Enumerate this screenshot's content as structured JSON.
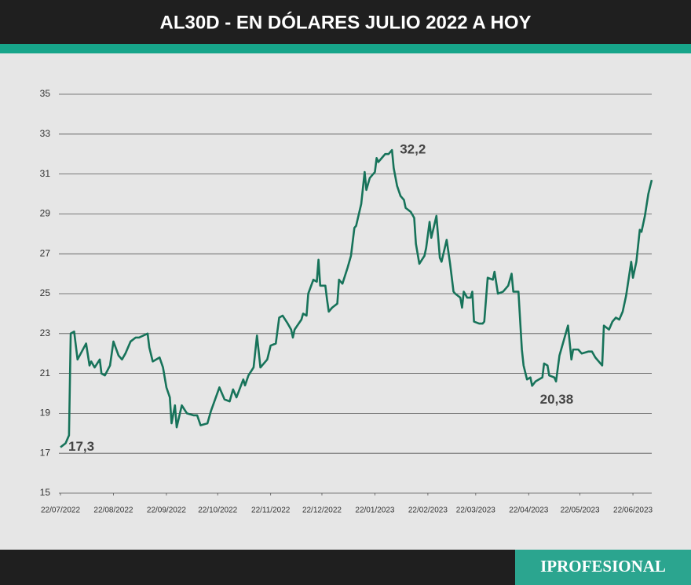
{
  "chart_data": {
    "type": "line",
    "title": "AL30D - EN DÓLARES JULIO 2022 A HOY",
    "brand": "IPROFESIONAL",
    "grid": true,
    "ylim": [
      15,
      35
    ],
    "yticks": [
      15,
      17,
      19,
      21,
      23,
      25,
      27,
      29,
      31,
      33,
      35
    ],
    "xlim": [
      "2022-07-22",
      "2023-07-03"
    ],
    "xticks": [
      {
        "value": "2022-07-22",
        "label": "22/07/2022"
      },
      {
        "value": "2022-08-22",
        "label": "22/08/2022"
      },
      {
        "value": "2022-09-22",
        "label": "22/09/2022"
      },
      {
        "value": "2022-10-22",
        "label": "22/10/2022"
      },
      {
        "value": "2022-11-22",
        "label": "22/11/2022"
      },
      {
        "value": "2022-12-22",
        "label": "22/12/2022"
      },
      {
        "value": "2023-01-22",
        "label": "22/01/2023"
      },
      {
        "value": "2023-02-22",
        "label": "22/02/2023"
      },
      {
        "value": "2023-03-22",
        "label": "22/03/2023"
      },
      {
        "value": "2023-04-22",
        "label": "22/04/2023"
      },
      {
        "value": "2023-05-22",
        "label": "22/05/2023"
      },
      {
        "value": "2023-06-22",
        "label": "22/06/2023"
      }
    ],
    "x": [
      "2022-07-22",
      "2022-07-25",
      "2022-07-27",
      "2022-07-28",
      "2022-07-30",
      "2022-08-01",
      "2022-08-06",
      "2022-08-08",
      "2022-08-09",
      "2022-08-11",
      "2022-08-14",
      "2022-08-15",
      "2022-08-17",
      "2022-08-20",
      "2022-08-22",
      "2022-08-25",
      "2022-08-27",
      "2022-08-29",
      "2022-09-01",
      "2022-09-04",
      "2022-09-06",
      "2022-09-11",
      "2022-09-12",
      "2022-09-14",
      "2022-09-18",
      "2022-09-20",
      "2022-09-22",
      "2022-09-24",
      "2022-09-25",
      "2022-09-27",
      "2022-09-28",
      "2022-10-01",
      "2022-10-04",
      "2022-10-08",
      "2022-10-10",
      "2022-10-12",
      "2022-10-16",
      "2022-10-18",
      "2022-10-23",
      "2022-10-26",
      "2022-10-29",
      "2022-10-31",
      "2022-11-02",
      "2022-11-06",
      "2022-11-07",
      "2022-11-09",
      "2022-11-12",
      "2022-11-14",
      "2022-11-16",
      "2022-11-20",
      "2022-11-22",
      "2022-11-25",
      "2022-11-27",
      "2022-11-29",
      "2022-12-02",
      "2022-12-04",
      "2022-12-05",
      "2022-12-06",
      "2022-12-10",
      "2022-12-11",
      "2022-12-13",
      "2022-12-14",
      "2022-12-17",
      "2022-12-19",
      "2022-12-20",
      "2022-12-21",
      "2022-12-24",
      "2022-12-25",
      "2022-12-26",
      "2022-12-28",
      "2022-12-31",
      "2023-01-01",
      "2023-01-03",
      "2023-01-06",
      "2023-01-08",
      "2023-01-10",
      "2023-01-11",
      "2023-01-14",
      "2023-01-16",
      "2023-01-17",
      "2023-01-19",
      "2023-01-22",
      "2023-01-23",
      "2023-01-24",
      "2023-01-27",
      "2023-01-28",
      "2023-01-30",
      "2023-02-01",
      "2023-02-02",
      "2023-02-04",
      "2023-02-06",
      "2023-02-08",
      "2023-02-09",
      "2023-02-12",
      "2023-02-14",
      "2023-02-15",
      "2023-02-17",
      "2023-02-20",
      "2023-02-21",
      "2023-02-23",
      "2023-02-24",
      "2023-02-27",
      "2023-03-01",
      "2023-03-02",
      "2023-03-05",
      "2023-03-07",
      "2023-03-09",
      "2023-03-10",
      "2023-03-13",
      "2023-03-14",
      "2023-03-15",
      "2023-03-17",
      "2023-03-19",
      "2023-03-20",
      "2023-03-21",
      "2023-03-24",
      "2023-03-26",
      "2023-03-27",
      "2023-03-29",
      "2023-04-01",
      "2023-04-02",
      "2023-04-04",
      "2023-04-07",
      "2023-04-10",
      "2023-04-12",
      "2023-04-13",
      "2023-04-16",
      "2023-04-18",
      "2023-04-19",
      "2023-04-21",
      "2023-04-23",
      "2023-04-24",
      "2023-04-26",
      "2023-04-30",
      "2023-05-01",
      "2023-05-03",
      "2023-05-04",
      "2023-05-07",
      "2023-05-08",
      "2023-05-10",
      "2023-05-12",
      "2023-05-15",
      "2023-05-17",
      "2023-05-18",
      "2023-05-21",
      "2023-05-23",
      "2023-05-27",
      "2023-05-29",
      "2023-05-31",
      "2023-06-03",
      "2023-06-04",
      "2023-06-05",
      "2023-06-08",
      "2023-06-10",
      "2023-06-12",
      "2023-06-14",
      "2023-06-16",
      "2023-06-18",
      "2023-06-21",
      "2023-06-22",
      "2023-06-24",
      "2023-06-26",
      "2023-06-27",
      "2023-06-29",
      "2023-07-01",
      "2023-07-03"
    ],
    "series": [
      {
        "color": "#17735a",
        "values": [
          17.3,
          17.5,
          17.9,
          23.0,
          23.1,
          21.7,
          22.5,
          21.4,
          21.6,
          21.3,
          21.7,
          21.0,
          20.9,
          21.4,
          22.6,
          21.9,
          21.7,
          22.0,
          22.6,
          22.8,
          22.8,
          23.0,
          22.3,
          21.6,
          21.8,
          21.3,
          20.3,
          19.8,
          18.5,
          19.4,
          18.3,
          19.4,
          19.0,
          18.9,
          18.9,
          18.4,
          18.5,
          19.1,
          20.3,
          19.7,
          19.6,
          20.2,
          19.8,
          20.7,
          20.4,
          20.9,
          21.3,
          22.9,
          21.3,
          21.7,
          22.4,
          22.5,
          23.8,
          23.9,
          23.5,
          23.2,
          22.8,
          23.2,
          23.7,
          24.0,
          23.9,
          25.0,
          25.7,
          25.6,
          26.7,
          25.4,
          25.4,
          24.7,
          24.1,
          24.3,
          24.5,
          25.7,
          25.5,
          26.3,
          26.9,
          28.3,
          28.4,
          29.5,
          31.1,
          30.2,
          30.8,
          31.1,
          31.8,
          31.6,
          31.9,
          32.0,
          32.0,
          32.2,
          31.3,
          30.4,
          29.9,
          29.7,
          29.3,
          29.1,
          28.8,
          27.5,
          26.5,
          26.9,
          27.3,
          28.6,
          27.8,
          28.9,
          26.8,
          26.6,
          27.7,
          26.5,
          25.1,
          25.0,
          24.8,
          24.3,
          25.1,
          24.8,
          24.8,
          25.1,
          23.6,
          23.5,
          23.5,
          23.6,
          25.8,
          25.7,
          26.1,
          25.0,
          25.1,
          25.4,
          26.0,
          25.1,
          25.1,
          22.2,
          21.4,
          20.7,
          20.8,
          20.38,
          20.6,
          20.8,
          21.5,
          21.4,
          20.9,
          20.8,
          20.6,
          21.9,
          22.5,
          23.4,
          21.7,
          22.2,
          22.2,
          22.0,
          22.1,
          22.1,
          21.8,
          21.5,
          21.4,
          23.4,
          23.2,
          23.6,
          23.8,
          23.7,
          24.1,
          24.9,
          26.6,
          25.8,
          26.6,
          28.2,
          28.1,
          28.9,
          30.0,
          30.7
        ],
        "value_labels": [
          "17,3",
          null,
          null,
          null,
          null,
          null,
          null,
          null,
          null,
          null,
          null,
          null,
          null,
          null,
          null,
          null,
          null,
          null,
          null,
          null,
          null,
          null,
          null,
          null,
          null,
          null,
          null,
          null,
          null,
          null,
          null,
          null,
          null,
          null,
          null,
          null,
          null,
          null,
          null,
          null,
          null,
          null,
          null,
          null,
          null,
          null,
          null,
          null,
          null,
          null,
          null,
          null,
          null,
          null,
          null,
          null,
          null,
          null,
          null,
          null,
          null,
          null,
          null,
          null,
          null,
          null,
          null,
          null,
          null,
          null,
          null,
          null,
          null,
          null,
          null,
          null,
          null,
          null,
          null,
          null,
          null,
          null,
          null,
          null,
          null,
          null,
          null,
          "32,2",
          null,
          null,
          null,
          null,
          null,
          null,
          null,
          null,
          null,
          null,
          null,
          null,
          null,
          null,
          null,
          null,
          null,
          null,
          null,
          null,
          null,
          null,
          null,
          null,
          null,
          null,
          null,
          null,
          null,
          null,
          null,
          null,
          null,
          null,
          null,
          null,
          null,
          null,
          null,
          null,
          null,
          null,
          null,
          "20,38",
          null,
          null,
          null,
          null,
          null,
          null,
          null,
          null,
          null,
          null,
          null,
          null,
          null,
          null,
          null,
          null,
          null,
          null,
          null,
          null,
          null,
          null,
          null,
          null,
          null,
          null,
          null,
          null,
          null,
          null,
          null,
          null,
          null,
          null
        ]
      }
    ]
  }
}
